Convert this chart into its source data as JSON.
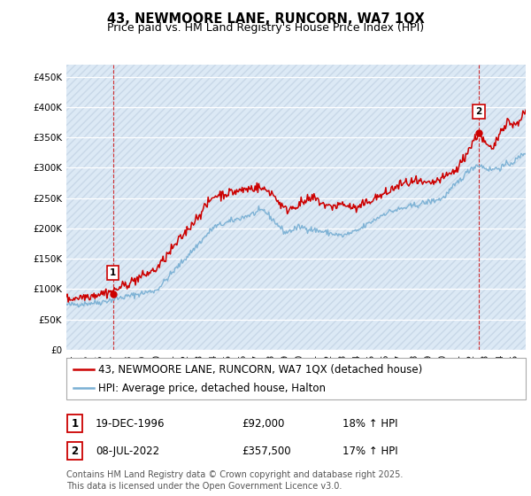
{
  "title": "43, NEWMOORE LANE, RUNCORN, WA7 1QX",
  "subtitle": "Price paid vs. HM Land Registry's House Price Index (HPI)",
  "ylabel_ticks": [
    "£0",
    "£50K",
    "£100K",
    "£150K",
    "£200K",
    "£250K",
    "£300K",
    "£350K",
    "£400K",
    "£450K"
  ],
  "ytick_values": [
    0,
    50000,
    100000,
    150000,
    200000,
    250000,
    300000,
    350000,
    400000,
    450000
  ],
  "ylim": [
    0,
    470000
  ],
  "xlim_start": 1993.7,
  "xlim_end": 2025.8,
  "plot_bg_color": "#dce9f5",
  "grid_color": "#ffffff",
  "red_line_color": "#cc0000",
  "blue_line_color": "#7ab0d4",
  "marker1_x": 1996.97,
  "marker1_y": 92000,
  "marker1_label": "1",
  "marker2_x": 2022.52,
  "marker2_y": 357500,
  "marker2_label": "2",
  "legend_label1": "43, NEWMOORE LANE, RUNCORN, WA7 1QX (detached house)",
  "legend_label2": "HPI: Average price, detached house, Halton",
  "table_row1": [
    "1",
    "19-DEC-1996",
    "£92,000",
    "18% ↑ HPI"
  ],
  "table_row2": [
    "2",
    "08-JUL-2022",
    "£357,500",
    "17% ↑ HPI"
  ],
  "footer": "Contains HM Land Registry data © Crown copyright and database right 2025.\nThis data is licensed under the Open Government Licence v3.0.",
  "title_fontsize": 10.5,
  "subtitle_fontsize": 9,
  "tick_fontsize": 7.5,
  "legend_fontsize": 8.5,
  "table_fontsize": 8.5,
  "footer_fontsize": 7
}
